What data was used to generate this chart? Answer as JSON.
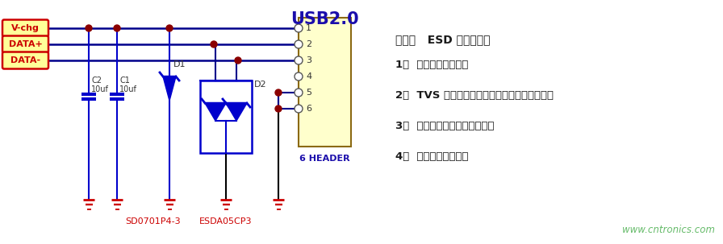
{
  "bg_color": "#ffffff",
  "title_usb": "USB2.0",
  "title_usb_color": "#1a0dab",
  "connector_fill": "#ffffcc",
  "connector_border": "#8b6914",
  "pin_labels": [
    "1",
    "2",
    "3",
    "4",
    "5",
    "6"
  ],
  "connector_label": "6 HEADER",
  "connector_label_color": "#1a0dab",
  "signal_labels": [
    "V-chg",
    "DATA+",
    "DATA-"
  ],
  "signal_fill": "#ffff99",
  "signal_border": "#cc0000",
  "signal_text_color": "#cc0000",
  "wire_color": "#00008b",
  "dot_color": "#8b0000",
  "gnd_color": "#cc0000",
  "cap_color": "#0000cc",
  "diode_color": "#0000cc",
  "label_c2": "C2",
  "label_c2b": "10uf",
  "label_c1": "C1",
  "label_c1b": "10uf",
  "label_d1": "D1",
  "label_d2": "D2",
  "label_sd": "SD0701P4-3",
  "label_esda": "ESDA05CP3",
  "label_sd_color": "#cc0000",
  "label_esda_color": "#cc0000",
  "note_header": "备注：   ESD 选型原则：",
  "note_lines": [
    "1、  选择合适的封装；",
    "2、  TVS 的击穿电压大于电路的最大工作电压；",
    "3、  选择符合测试要求的功率；",
    "4、  选择鄗位较小的。"
  ],
  "note_color": "#1a1a1a",
  "website": "www.cntronics.com",
  "website_color": "#66bb6a"
}
